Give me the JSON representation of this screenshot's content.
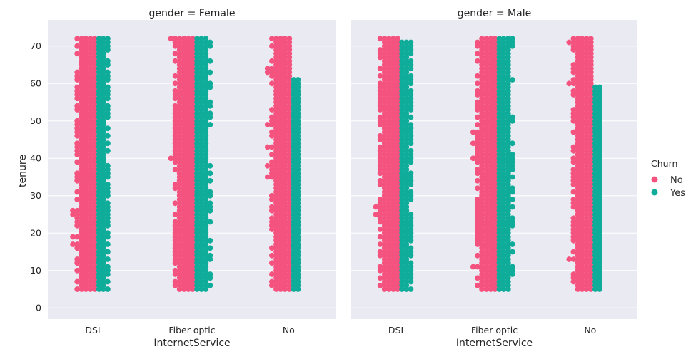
{
  "chart_data": {
    "type": "scatter",
    "subtype": "swarm",
    "title": "",
    "xlabel": "InternetService",
    "ylabel": "tenure",
    "categories": [
      "DSL",
      "Fiber optic",
      "No"
    ],
    "ylim": [
      -3,
      77
    ],
    "yticks": [
      0,
      10,
      20,
      30,
      40,
      50,
      60,
      70
    ],
    "grid": true,
    "legend": {
      "title": "Churn",
      "placement": "right",
      "entries": [
        "No",
        "Yes"
      ]
    },
    "colors": {
      "No": "#f5537f",
      "Yes": "#0fac9a",
      "panel_bg": "#eaeaf2",
      "grid": "#ffffff"
    },
    "panels": [
      {
        "title": "gender = Female",
        "series": [
          {
            "name": "No",
            "category": "DSL",
            "min": 0,
            "max": 72
          },
          {
            "name": "Yes",
            "category": "DSL",
            "min": 1,
            "max": 72
          },
          {
            "name": "No",
            "category": "Fiber optic",
            "min": 1,
            "max": 72
          },
          {
            "name": "Yes",
            "category": "Fiber optic",
            "min": 1,
            "max": 72
          },
          {
            "name": "No",
            "category": "No",
            "min": 0,
            "max": 72
          },
          {
            "name": "Yes",
            "category": "No",
            "min": 1,
            "max": 61
          }
        ]
      },
      {
        "title": "gender = Male",
        "series": [
          {
            "name": "No",
            "category": "DSL",
            "min": 0,
            "max": 72
          },
          {
            "name": "Yes",
            "category": "DSL",
            "min": 1,
            "max": 71
          },
          {
            "name": "No",
            "category": "Fiber optic",
            "min": 1,
            "max": 72
          },
          {
            "name": "Yes",
            "category": "Fiber optic",
            "min": 1,
            "max": 72
          },
          {
            "name": "No",
            "category": "No",
            "min": 0,
            "max": 72
          },
          {
            "name": "Yes",
            "category": "No",
            "min": 1,
            "max": 59
          }
        ]
      }
    ]
  }
}
